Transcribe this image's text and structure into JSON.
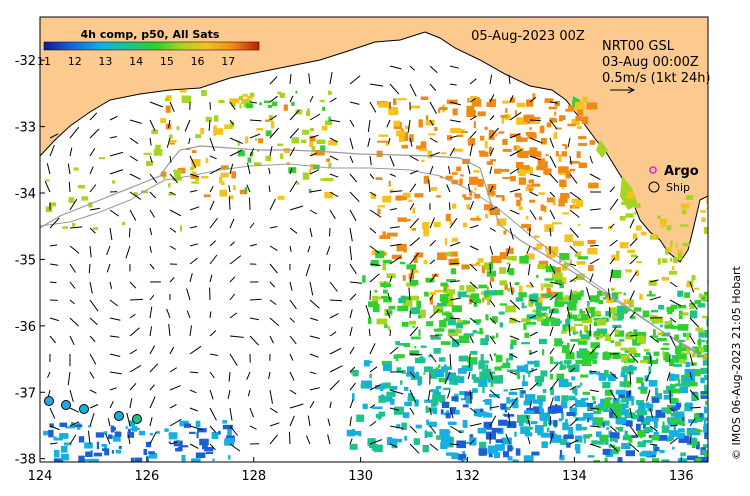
{
  "map": {
    "date_title": "05-Aug-2023 00Z",
    "product_line1": "NRT00 GSL",
    "product_line2": "03-Aug 00:00Z",
    "product_line3": "0.5m/s (1kt 24h)",
    "colorbar_title": "4h comp, p50, All Sats",
    "colorbar_ticks": [
      "11",
      "12",
      "13",
      "14",
      "15",
      "16",
      "17"
    ],
    "colorbar_range": [
      11,
      18
    ],
    "legend": {
      "argo": "Argo",
      "ship": "Ship"
    },
    "credit": "© IMOS 06-Aug-2023 21:05 Hobart",
    "lon_ticks": [
      "124",
      "126",
      "128",
      "130",
      "132",
      "134",
      "136"
    ],
    "lat_ticks": [
      "-32",
      "-33",
      "-34",
      "-35",
      "-36",
      "-37",
      "-38"
    ],
    "lon_range": [
      124,
      136.5
    ],
    "lat_range": [
      -38.05,
      -31.35
    ]
  },
  "colors": {
    "land": "#fcc98f",
    "coast": "#000000",
    "track": "#999999",
    "colorbar_stops": [
      "#0b1b8f",
      "#1a5fd6",
      "#16b0e0",
      "#1fc28a",
      "#2ecf2e",
      "#a7d51f",
      "#f5c21b",
      "#f08a14",
      "#c21a12"
    ]
  }
}
